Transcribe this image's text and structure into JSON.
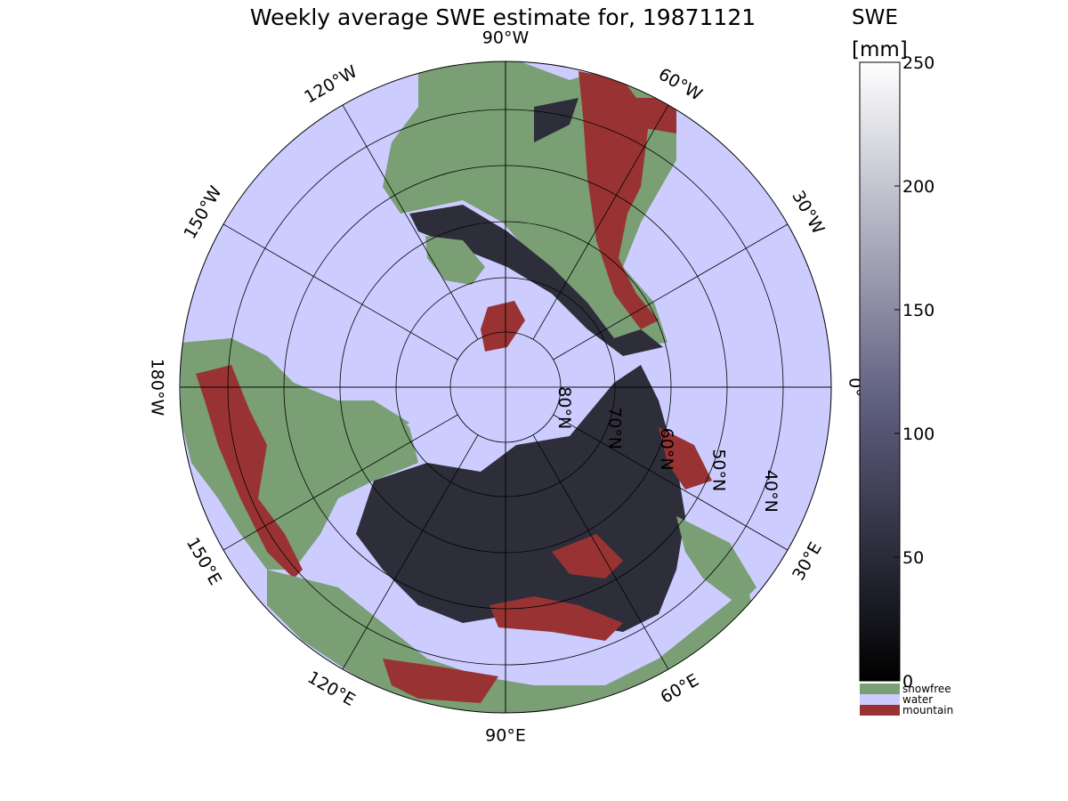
{
  "title": "Weekly average SWE estimate for, 19871121",
  "colorbar": {
    "label": "SWE",
    "units": "[mm]",
    "ticks": [
      "250",
      "200",
      "150",
      "100",
      "50",
      "0"
    ],
    "tick_values": [
      250,
      200,
      150,
      100,
      50,
      0
    ],
    "min": 0,
    "max": 250,
    "colors": {
      "low": "#000000",
      "mid": "#5f5f80",
      "high": "#ffffff"
    }
  },
  "legend": [
    {
      "label": "snowfree",
      "color": "#7a9f74"
    },
    {
      "label": "water",
      "color": "#ccccff"
    },
    {
      "label": "mountain",
      "color": "#993333"
    }
  ],
  "map": {
    "projection": "north polar stereographic",
    "ocean_color": "#ccccff",
    "snowfree_color": "#7a9f74",
    "mountain_color": "#993333",
    "snow_color": "#2e2e3a",
    "meridian_labels": [
      "90°W",
      "120°W",
      "150°W",
      "180°W",
      "150°E",
      "120°E",
      "90°E",
      "60°E",
      "30°E",
      "0°",
      "30°W",
      "60°W"
    ],
    "parallel_labels": [
      "80°N",
      "70°N",
      "60°N",
      "50°N",
      "40°N"
    ]
  }
}
